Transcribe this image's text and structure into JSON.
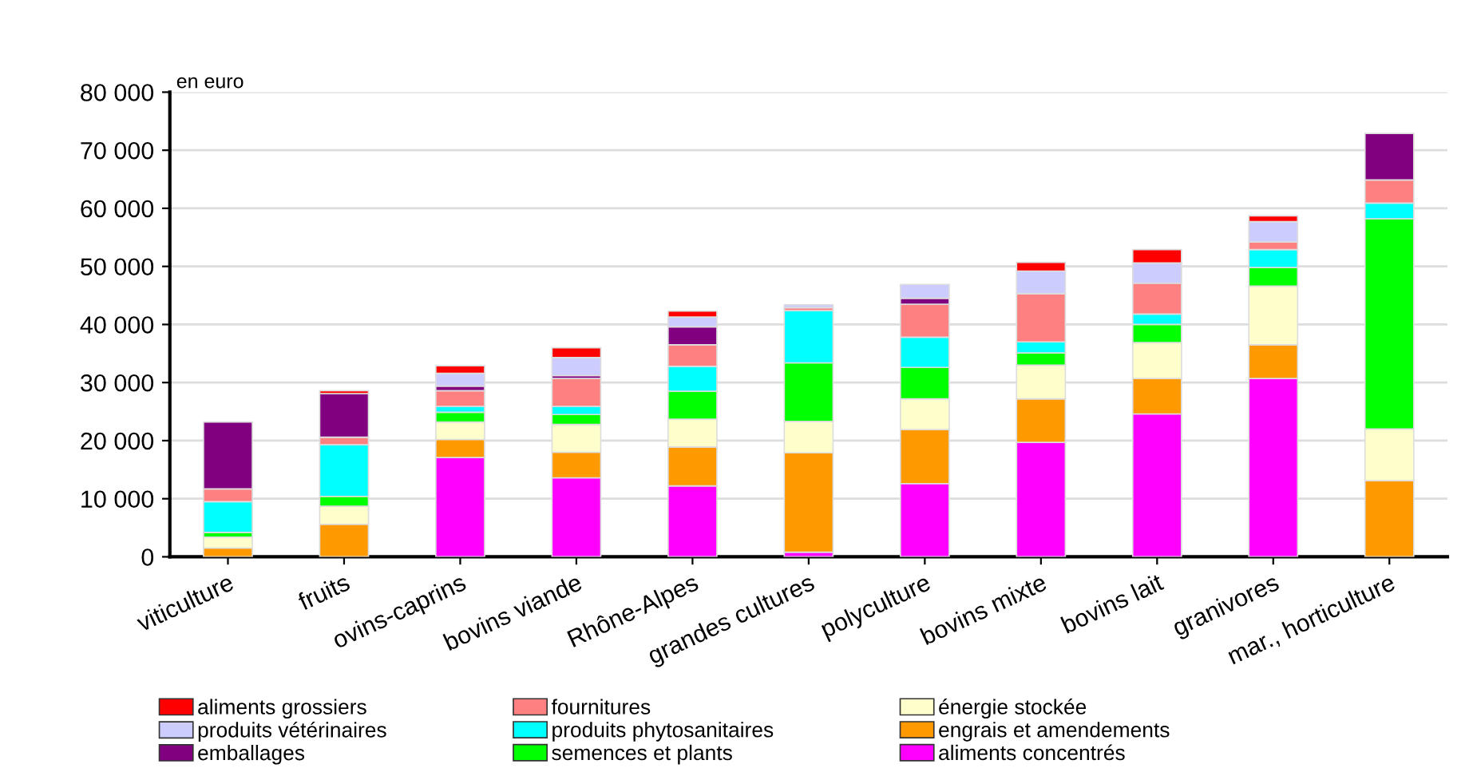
{
  "chart_data": {
    "type": "bar",
    "stacked": true,
    "ylabel": "en euro",
    "categories": [
      "viticulture",
      "fruits",
      "ovins-caprins",
      "bovins viande",
      "Rhône-Alpes",
      "grandes cultures",
      "polyculture",
      "bovins mixte",
      "bovins lait",
      "granivores",
      "mar., horticulture"
    ],
    "series": [
      {
        "name": "aliments concentrés",
        "color": "#ff00ff",
        "values": [
          0,
          0,
          17100,
          13600,
          12200,
          800,
          12600,
          19700,
          24600,
          30700,
          0
        ]
      },
      {
        "name": "engrais et amendements",
        "color": "#ff9900",
        "values": [
          1500,
          5600,
          3100,
          4400,
          6700,
          17100,
          9300,
          7500,
          6100,
          5800,
          13100
        ]
      },
      {
        "name": "énergie stockée",
        "color": "#ffffcc",
        "values": [
          1900,
          3100,
          3000,
          4800,
          4800,
          5400,
          5300,
          5800,
          6200,
          10100,
          8900
        ]
      },
      {
        "name": "semences et plants",
        "color": "#00ff00",
        "values": [
          800,
          1700,
          1700,
          1700,
          4800,
          10100,
          5400,
          2100,
          3100,
          3200,
          36200
        ]
      },
      {
        "name": "produits phytosanitaires",
        "color": "#00ffff",
        "values": [
          5300,
          8900,
          1000,
          1400,
          4300,
          9000,
          5200,
          1900,
          1800,
          3100,
          2700
        ]
      },
      {
        "name": "fournitures",
        "color": "#ff8080",
        "values": [
          2200,
          1300,
          2700,
          4800,
          3700,
          500,
          5700,
          8300,
          5300,
          1300,
          4000
        ]
      },
      {
        "name": "emballages",
        "color": "#800080",
        "values": [
          11500,
          7500,
          800,
          500,
          3100,
          0,
          1000,
          0,
          0,
          0,
          8000
        ]
      },
      {
        "name": "produits vétérinaires",
        "color": "#ccccff",
        "values": [
          0,
          0,
          2200,
          3100,
          1700,
          500,
          2400,
          3900,
          3500,
          3500,
          0
        ]
      },
      {
        "name": "aliments grossiers",
        "color": "#ff0000",
        "values": [
          0,
          500,
          1300,
          1700,
          1000,
          0,
          0,
          1500,
          2300,
          1000,
          0
        ]
      }
    ],
    "ylim": [
      0,
      80000
    ],
    "yticks": [
      {
        "value": 0,
        "label": "0"
      },
      {
        "value": 10000,
        "label": "10 000"
      },
      {
        "value": 20000,
        "label": "20 000"
      },
      {
        "value": 30000,
        "label": "30 000"
      },
      {
        "value": 40000,
        "label": "40 000"
      },
      {
        "value": 50000,
        "label": "50 000"
      },
      {
        "value": 60000,
        "label": "60 000"
      },
      {
        "value": 70000,
        "label": "70 000"
      },
      {
        "value": 80000,
        "label": "80 000"
      }
    ],
    "grid": "y",
    "legend": "bottom"
  }
}
